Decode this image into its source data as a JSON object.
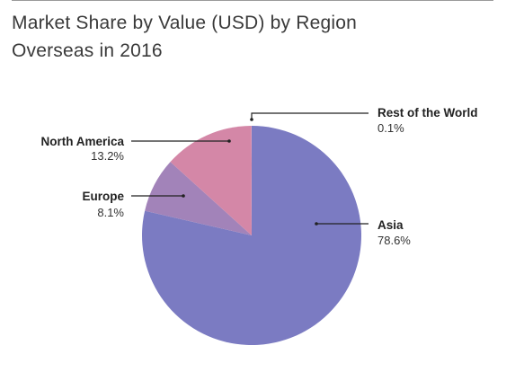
{
  "chart_data": {
    "type": "pie",
    "title": "Market Share by Value (USD) by Region",
    "subtitle": "Overseas in 2016",
    "slices": [
      {
        "label": "Asia",
        "value": 78.6,
        "display": "78.6%",
        "color": "#7b7bc2"
      },
      {
        "label": "Europe",
        "value": 8.1,
        "display": "8.1%",
        "color": "#a283b9"
      },
      {
        "label": "North America",
        "value": 13.2,
        "display": "13.2%",
        "color": "#d487a7"
      },
      {
        "label": "Rest of the World",
        "value": 0.1,
        "display": "0.1%",
        "color": "#d98fae"
      }
    ],
    "start_angle_deg": 0,
    "direction": "clockwise",
    "label_placement": "outside-with-leaders"
  },
  "header": {
    "title": "Market Share by Value (USD) by Region",
    "subtitle": "Overseas in 2016"
  }
}
